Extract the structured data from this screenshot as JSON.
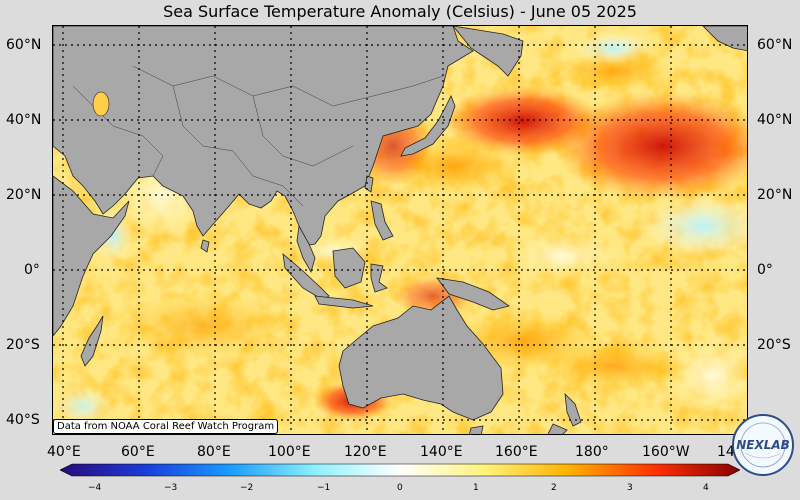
{
  "title": "Sea Surface Temperature Anomaly (Celsius) - June 05 2025",
  "lat_labels": [
    "60°N",
    "40°N",
    "20°N",
    "0°",
    "20°S",
    "40°S"
  ],
  "lon_labels": [
    "40°E",
    "60°E",
    "80°E",
    "100°E",
    "120°E",
    "140°E",
    "160°E",
    "180°",
    "160°W",
    "14"
  ],
  "credit": "Data from NOAA Coral Reef Watch Program",
  "colorbar": {
    "ticks": [
      "−4",
      "−3",
      "−2",
      "−1",
      "0",
      "1",
      "2",
      "3",
      "4"
    ],
    "min": -4,
    "max": 4,
    "stops": [
      "#2a0a7a",
      "#1a3cd8",
      "#1a9cff",
      "#8ef0ff",
      "#ffffff",
      "#fff27a",
      "#ffb000",
      "#ff3000",
      "#8a0000"
    ]
  },
  "logo_text": "NEXLAB",
  "colors": {
    "land": "#a8a8a8",
    "ocean_base": "#ffe884",
    "background": "#dcdcdc"
  }
}
